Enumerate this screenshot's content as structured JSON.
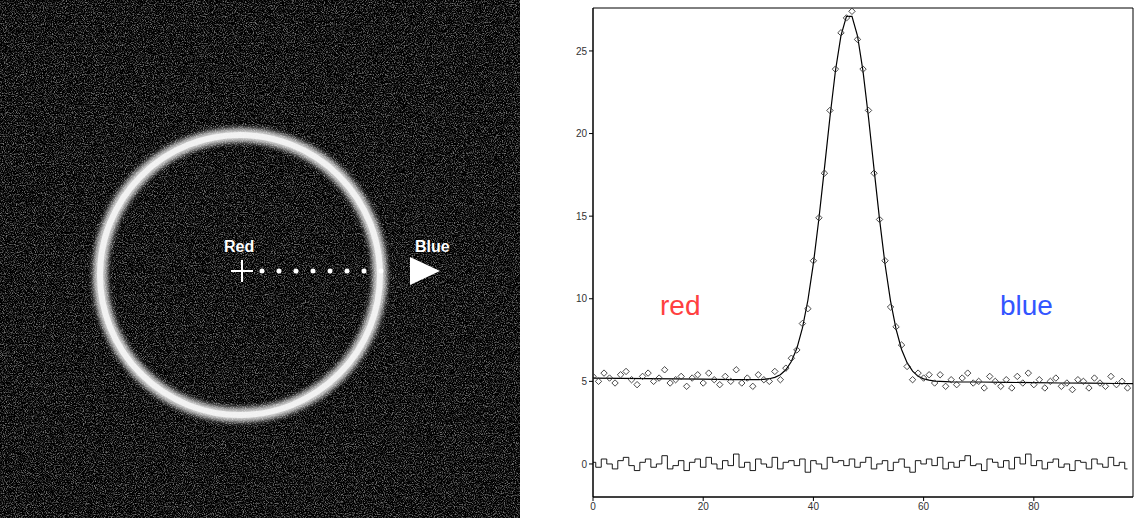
{
  "image": {
    "labels": [
      "Red",
      "Blue"
    ]
  },
  "chart_data": {
    "type": "line",
    "xlim": [
      0,
      98
    ],
    "xticks": [
      0,
      20,
      40,
      60,
      80
    ],
    "ylim": [
      -2,
      27.6
    ],
    "yticks": [
      0,
      5,
      10,
      15,
      20,
      25
    ],
    "grid": false,
    "annotations": [
      {
        "text": "red",
        "color": "#ff4040"
      },
      {
        "text": "blue",
        "color": "#3355ff"
      }
    ],
    "series": [
      {
        "type": "scatter",
        "marker": "diamond",
        "color": "#333333",
        "x": [
          0,
          1,
          2,
          3,
          4,
          5,
          6,
          7,
          8,
          9,
          10,
          11,
          12,
          13,
          14,
          15,
          16,
          17,
          18,
          19,
          20,
          21,
          22,
          23,
          24,
          25,
          26,
          27,
          28,
          29,
          30,
          31,
          32,
          33,
          34,
          35,
          36,
          37,
          38,
          39,
          40,
          41,
          42,
          43,
          44,
          45,
          46,
          47,
          48,
          49,
          50,
          51,
          52,
          53,
          54,
          55,
          56,
          57,
          58,
          59,
          60,
          61,
          62,
          63,
          64,
          65,
          66,
          67,
          68,
          69,
          70,
          71,
          72,
          73,
          74,
          75,
          76,
          77,
          78,
          79,
          80,
          81,
          82,
          83,
          84,
          85,
          86,
          87,
          88,
          89,
          90,
          91,
          92,
          93,
          94,
          95,
          96,
          97
        ],
        "values": [
          5.3,
          5.0,
          5.5,
          5.2,
          4.9,
          5.4,
          5.6,
          5.1,
          4.8,
          5.3,
          5.5,
          5.0,
          5.2,
          5.7,
          4.9,
          5.1,
          5.3,
          4.7,
          5.2,
          5.4,
          4.9,
          5.5,
          5.1,
          4.8,
          5.3,
          5.0,
          5.7,
          4.9,
          5.2,
          4.7,
          5.4,
          5.1,
          5.0,
          5.6,
          5.1,
          5.8,
          6.4,
          6.9,
          8.5,
          9.4,
          12.3,
          14.9,
          17.6,
          21.4,
          23.9,
          26.1,
          27.0,
          27.4,
          25.7,
          23.9,
          21.4,
          17.6,
          14.8,
          12.3,
          9.5,
          8.3,
          7.2,
          5.9,
          5.1,
          5.5,
          5.2,
          5.4,
          4.9,
          5.4,
          4.7,
          5.1,
          4.8,
          5.2,
          5.5,
          4.9,
          5.0,
          4.6,
          5.3,
          5.0,
          4.7,
          5.1,
          4.6,
          5.3,
          4.9,
          5.5,
          4.8,
          5.1,
          4.6,
          5.0,
          5.2,
          4.7,
          4.9,
          4.5,
          5.1,
          5.0,
          4.6,
          5.2,
          4.9,
          4.7,
          5.3,
          4.8,
          5.0,
          4.6
        ]
      },
      {
        "type": "line",
        "color": "#000000",
        "x": [
          0,
          5,
          10,
          15,
          20,
          25,
          30,
          31,
          32,
          33,
          34,
          35,
          36,
          37,
          38,
          39,
          40,
          41,
          42,
          43,
          44,
          45,
          46,
          47,
          48,
          49,
          50,
          51,
          52,
          53,
          54,
          55,
          56,
          57,
          58,
          59,
          60,
          61,
          62,
          65,
          70,
          75,
          80,
          85,
          90,
          95,
          98
        ],
        "values": [
          5.2,
          5.18,
          5.17,
          5.15,
          5.13,
          5.11,
          5.11,
          5.12,
          5.16,
          5.24,
          5.4,
          5.7,
          6.2,
          7.0,
          8.22,
          9.91,
          12.14,
          14.86,
          17.89,
          20.99,
          23.8,
          25.93,
          27.09,
          27.09,
          25.92,
          23.78,
          20.97,
          17.86,
          14.82,
          12.09,
          9.86,
          8.16,
          6.93,
          6.13,
          5.62,
          5.31,
          5.15,
          5.07,
          5.01,
          4.97,
          4.96,
          4.94,
          4.92,
          4.9,
          4.89,
          4.87,
          4.86
        ]
      },
      {
        "type": "step",
        "color": "#000000",
        "x": [
          0,
          1,
          2,
          3,
          4,
          5,
          6,
          7,
          8,
          9,
          10,
          11,
          12,
          13,
          14,
          15,
          16,
          17,
          18,
          19,
          20,
          21,
          22,
          23,
          24,
          25,
          26,
          27,
          28,
          29,
          30,
          31,
          32,
          33,
          34,
          35,
          36,
          37,
          38,
          39,
          40,
          41,
          42,
          43,
          44,
          45,
          46,
          47,
          48,
          49,
          50,
          51,
          52,
          53,
          54,
          55,
          56,
          57,
          58,
          59,
          60,
          61,
          62,
          63,
          64,
          65,
          66,
          67,
          68,
          69,
          70,
          71,
          72,
          73,
          74,
          75,
          76,
          77,
          78,
          79,
          80,
          81,
          82,
          83,
          84,
          85,
          86,
          87,
          88,
          89,
          90,
          91,
          92,
          93,
          94,
          95,
          96,
          97
        ],
        "values": [
          0.1,
          -0.2,
          0.3,
          0.0,
          -0.3,
          0.2,
          0.4,
          -0.1,
          -0.4,
          0.1,
          0.3,
          -0.2,
          0.0,
          0.5,
          -0.3,
          -0.1,
          0.2,
          -0.4,
          0.1,
          0.3,
          -0.2,
          0.4,
          0.0,
          -0.3,
          0.2,
          -0.1,
          0.6,
          -0.2,
          0.1,
          -0.4,
          0.3,
          0.0,
          -0.2,
          0.4,
          -0.3,
          0.1,
          0.2,
          -0.1,
          0.3,
          -0.5,
          0.2,
          0.0,
          -0.3,
          0.4,
          0.1,
          0.2,
          -0.1,
          0.3,
          -0.2,
          0.1,
          0.4,
          -0.3,
          0.0,
          0.2,
          -0.4,
          0.1,
          0.3,
          -0.2,
          -0.5,
          0.2,
          0.0,
          0.3,
          -0.1,
          0.4,
          -0.3,
          0.1,
          -0.2,
          0.2,
          0.5,
          -0.1,
          0.0,
          -0.4,
          0.3,
          0.1,
          -0.2,
          0.2,
          -0.3,
          0.4,
          0.0,
          0.6,
          -0.1,
          0.2,
          -0.3,
          0.1,
          0.3,
          -0.2,
          0.0,
          -0.4,
          0.2,
          0.1,
          -0.3,
          0.3,
          0.0,
          -0.2,
          0.4,
          -0.1,
          0.1,
          -0.3
        ]
      }
    ]
  }
}
